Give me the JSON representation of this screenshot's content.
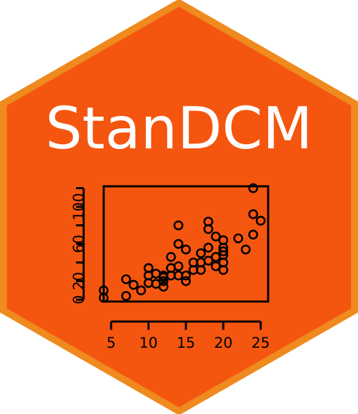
{
  "logo": {
    "title": "StanDCM",
    "colors": {
      "fill": "#f4560f",
      "border": "#ef8a1e",
      "text": "#ffffff",
      "ink": "#000000"
    }
  },
  "chart_data": {
    "type": "scatter",
    "title": "",
    "xlabel": "",
    "ylabel": "",
    "xlim": [
      4,
      26
    ],
    "ylim": [
      -2,
      122
    ],
    "x_ticks": [
      "5",
      "10",
      "15",
      "20",
      "25"
    ],
    "y_ticks": [
      "0",
      "20",
      "60",
      "100"
    ],
    "grid": false,
    "points": [
      [
        4,
        2
      ],
      [
        4,
        10
      ],
      [
        7,
        4
      ],
      [
        7,
        22
      ],
      [
        8,
        16
      ],
      [
        9,
        10
      ],
      [
        10,
        18
      ],
      [
        10,
        26
      ],
      [
        10,
        34
      ],
      [
        11,
        17
      ],
      [
        11,
        28
      ],
      [
        12,
        14
      ],
      [
        12,
        20
      ],
      [
        12,
        24
      ],
      [
        12,
        26
      ],
      [
        13,
        26
      ],
      [
        13,
        34
      ],
      [
        13,
        46
      ],
      [
        14,
        26
      ],
      [
        14,
        36
      ],
      [
        14,
        60
      ],
      [
        14,
        80
      ],
      [
        15,
        20
      ],
      [
        15,
        26
      ],
      [
        15,
        54
      ],
      [
        16,
        32
      ],
      [
        16,
        40
      ],
      [
        17,
        32
      ],
      [
        17,
        40
      ],
      [
        17,
        50
      ],
      [
        18,
        42
      ],
      [
        18,
        56
      ],
      [
        18,
        76
      ],
      [
        18,
        84
      ],
      [
        19,
        36
      ],
      [
        19,
        46
      ],
      [
        19,
        68
      ],
      [
        20,
        32
      ],
      [
        20,
        40
      ],
      [
        20,
        48
      ],
      [
        20,
        52
      ],
      [
        20,
        56
      ],
      [
        20,
        64
      ],
      [
        22,
        66
      ],
      [
        23,
        54
      ],
      [
        24,
        70
      ],
      [
        24,
        92
      ],
      [
        24,
        120
      ],
      [
        25,
        85
      ]
    ]
  }
}
